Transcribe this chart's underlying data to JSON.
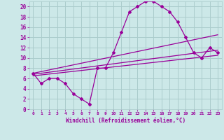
{
  "xlabel": "Windchill (Refroidissement éolien,°C)",
  "bg_color": "#cce8e8",
  "grid_color": "#aacccc",
  "line_color": "#990099",
  "xlim": [
    -0.5,
    23.5
  ],
  "ylim": [
    0,
    21
  ],
  "xticks": [
    0,
    1,
    2,
    3,
    4,
    5,
    6,
    7,
    8,
    9,
    10,
    11,
    12,
    13,
    14,
    15,
    16,
    17,
    18,
    19,
    20,
    21,
    22,
    23
  ],
  "yticks": [
    0,
    2,
    4,
    6,
    8,
    10,
    12,
    14,
    16,
    18,
    20
  ],
  "line1_x": [
    0,
    1,
    2,
    3,
    4,
    5,
    6,
    7,
    8,
    9,
    10,
    11,
    12,
    13,
    14,
    15,
    16,
    17,
    18,
    19,
    20,
    21,
    22,
    23
  ],
  "line1_y": [
    7,
    5,
    6,
    6,
    5,
    3,
    2,
    1,
    8,
    8,
    11,
    15,
    19,
    20,
    21,
    21,
    20,
    19,
    17,
    14,
    11,
    10,
    12,
    11
  ],
  "line2_x": [
    0,
    23
  ],
  "line2_y": [
    6.5,
    10.5
  ],
  "line3_x": [
    0,
    23
  ],
  "line3_y": [
    6.8,
    11.5
  ],
  "line4_x": [
    0,
    23
  ],
  "line4_y": [
    7.0,
    14.5
  ]
}
